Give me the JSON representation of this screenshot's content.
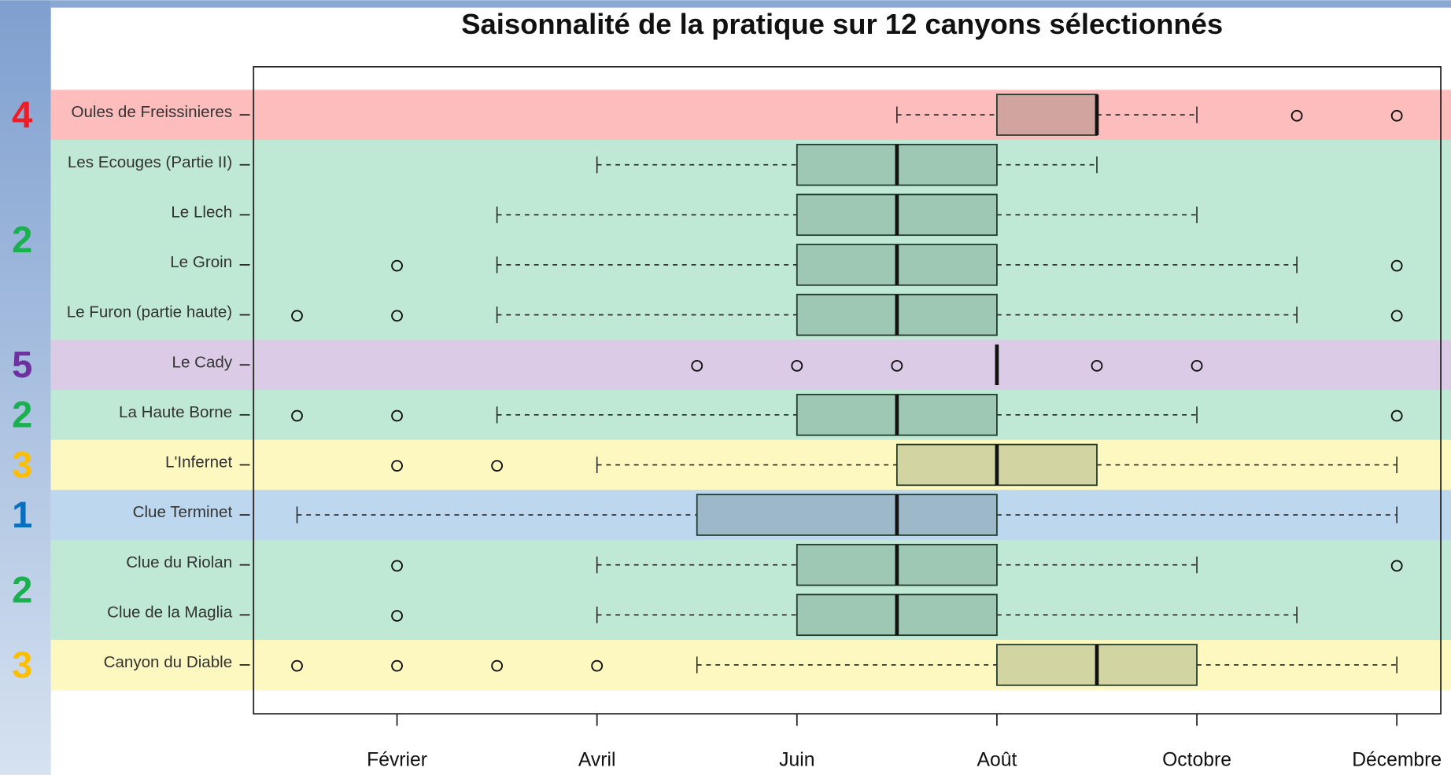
{
  "chart_data": {
    "type": "boxplot",
    "title": "Saisonnalité de la pratique sur 12 canyons sélectionnés",
    "xlim": [
      0.565,
      12.44
    ],
    "xticks": [
      {
        "value": 2,
        "label": "Février"
      },
      {
        "value": 4,
        "label": "Avril"
      },
      {
        "value": 6,
        "label": "Juin"
      },
      {
        "value": 8,
        "label": "Août"
      },
      {
        "value": 10,
        "label": "Octobre"
      },
      {
        "value": 12,
        "label": "Décembre"
      }
    ],
    "group_colors": {
      "1": {
        "label": "#0b6fc0",
        "band": "#bdd7ee"
      },
      "2": {
        "label": "#1bb04f",
        "band": "#bfe9d4"
      },
      "3": {
        "label": "#ffbf00",
        "band": "#fdf8bf"
      },
      "4": {
        "label": "#ee1c25",
        "band": "#fdbdbd"
      },
      "5": {
        "label": "#6f31a0",
        "band": "#dccbe6"
      }
    },
    "rows": [
      {
        "name": "Oules de Freissinieres",
        "group": "4",
        "whislo": 7,
        "q1": 8,
        "med": 9,
        "q3": 9,
        "whishi": 10,
        "fliers": [
          11,
          12
        ]
      },
      {
        "name": "Les Ecouges (Partie II)",
        "group": "2",
        "whislo": 4,
        "q1": 6,
        "med": 7,
        "q3": 8,
        "whishi": 9,
        "fliers": []
      },
      {
        "name": "Le Llech",
        "group": "2",
        "whislo": 3,
        "q1": 6,
        "med": 7,
        "q3": 8,
        "whishi": 10,
        "fliers": []
      },
      {
        "name": "Le Groin",
        "group": "2",
        "whislo": 3,
        "q1": 6,
        "med": 7,
        "q3": 8,
        "whishi": 11,
        "fliers": [
          2,
          12
        ]
      },
      {
        "name": "Le Furon (partie haute)",
        "group": "2",
        "whislo": 3,
        "q1": 6,
        "med": 7,
        "q3": 8,
        "whishi": 11,
        "fliers": [
          1,
          2,
          12
        ]
      },
      {
        "name": "Le Cady",
        "group": "5",
        "whislo": 8,
        "q1": 8,
        "med": 8,
        "q3": 8,
        "whishi": 8,
        "fliers": [
          5,
          6,
          7,
          9,
          10
        ]
      },
      {
        "name": "La Haute Borne",
        "group": "2",
        "whislo": 3,
        "q1": 6,
        "med": 7,
        "q3": 8,
        "whishi": 10,
        "fliers": [
          1,
          2,
          12
        ]
      },
      {
        "name": "L'Infernet",
        "group": "3",
        "whislo": 4,
        "q1": 7,
        "med": 8,
        "q3": 9,
        "whishi": 12,
        "fliers": [
          2,
          3
        ]
      },
      {
        "name": "Clue Terminet",
        "group": "1",
        "whislo": 1,
        "q1": 5,
        "med": 7,
        "q3": 8,
        "whishi": 12,
        "fliers": []
      },
      {
        "name": "Clue du Riolan",
        "group": "2",
        "whislo": 4,
        "q1": 6,
        "med": 7,
        "q3": 8,
        "whishi": 10,
        "fliers": [
          2,
          12
        ]
      },
      {
        "name": "Clue de la Maglia",
        "group": "2",
        "whislo": 4,
        "q1": 6,
        "med": 7,
        "q3": 8,
        "whishi": 11,
        "fliers": [
          2
        ]
      },
      {
        "name": "Canyon du Diable",
        "group": "3",
        "whislo": 5,
        "q1": 8,
        "med": 9,
        "q3": 10,
        "whishi": 12,
        "fliers": [
          1,
          2,
          3,
          4
        ]
      }
    ]
  }
}
